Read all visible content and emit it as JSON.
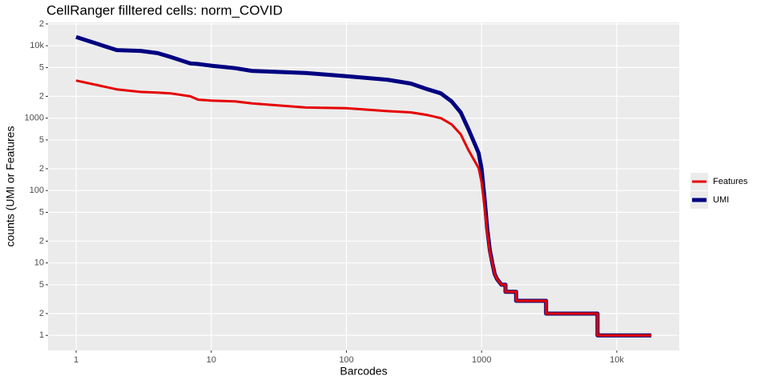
{
  "chart_data": {
    "type": "line",
    "title": "CellRanger filltered cells: norm_COVID",
    "x_label": "Barcodes",
    "y_label": "counts (UMI or Features",
    "x_scale": "log",
    "y_scale": "log",
    "grid": true,
    "legend_position": "right",
    "xlim": [
      0.62,
      29000
    ],
    "ylim": [
      0.62,
      21000
    ],
    "xticks": [
      1,
      10,
      100,
      1000,
      {
        "value": 10000,
        "label": "10k"
      }
    ],
    "yticks": [
      1,
      2,
      {
        "value": 5,
        "label": "5"
      },
      10,
      {
        "value": 20,
        "label": "2"
      },
      {
        "value": 50,
        "label": "5"
      },
      100,
      {
        "value": 200,
        "label": "2"
      },
      {
        "value": 500,
        "label": "5"
      },
      1000,
      {
        "value": 2000,
        "label": "2"
      },
      {
        "value": 5000,
        "label": "5"
      },
      {
        "value": 10000,
        "label": "10k"
      },
      {
        "value": 20000,
        "label": "2"
      }
    ],
    "x": [
      1,
      2,
      3,
      4,
      5,
      7,
      8,
      10,
      15,
      20,
      50,
      100,
      200,
      300,
      400,
      500,
      600,
      700,
      800,
      900,
      950,
      1000,
      1050,
      1100,
      1150,
      1200,
      1250,
      1300,
      1400,
      1500,
      1500,
      1800,
      1800,
      3000,
      3000,
      7200,
      7200,
      18000
    ],
    "series": [
      {
        "name": "Features",
        "color": "#e60000",
        "values": [
          3300,
          2500,
          2300,
          2250,
          2200,
          2000,
          1800,
          1750,
          1700,
          1600,
          1400,
          1370,
          1250,
          1200,
          1100,
          1000,
          820,
          600,
          360,
          245,
          205,
          130,
          60,
          27,
          14,
          10,
          7,
          6,
          5,
          5,
          4,
          4,
          3,
          3,
          2,
          2,
          1,
          1
        ]
      },
      {
        "name": "UMI",
        "color": "#000080",
        "values": [
          13200,
          8700,
          8500,
          7900,
          7000,
          5700,
          5600,
          5300,
          4900,
          4500,
          4200,
          3800,
          3400,
          3000,
          2500,
          2200,
          1700,
          1200,
          700,
          420,
          330,
          200,
          80,
          30,
          15,
          10,
          7,
          6,
          5,
          5,
          4,
          4,
          3,
          3,
          2,
          2,
          1,
          1
        ]
      }
    ]
  }
}
